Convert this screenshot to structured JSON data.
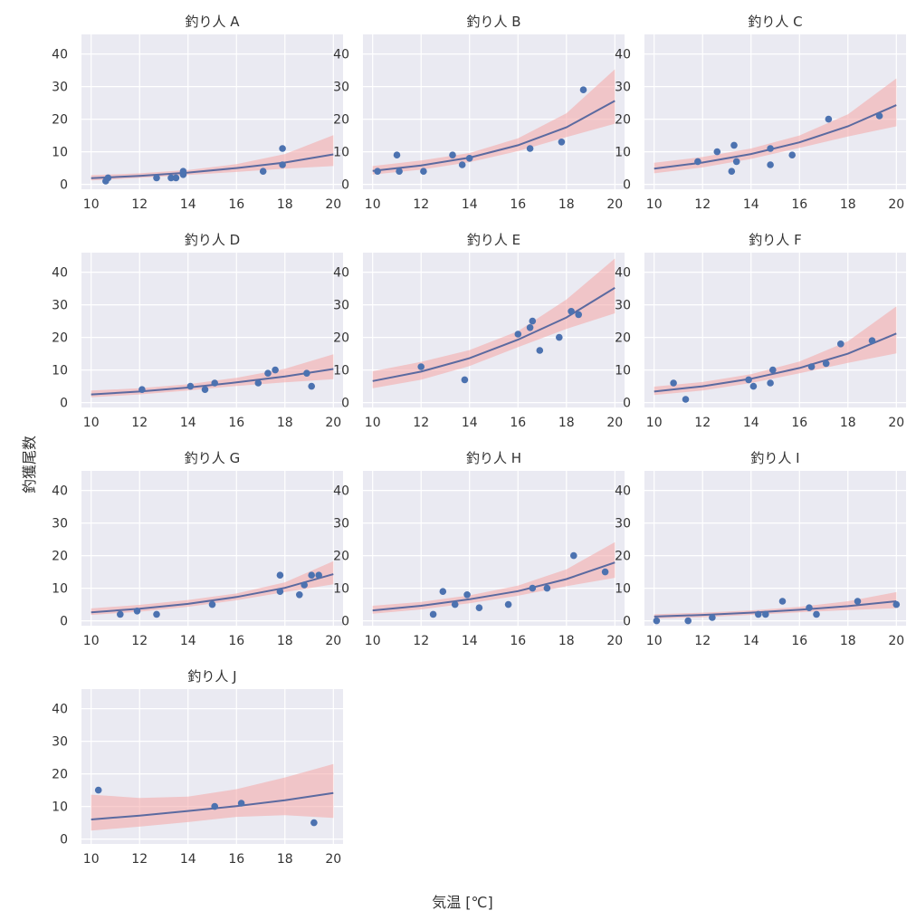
{
  "figure": {
    "xlabel": "気温 [℃]",
    "ylabel": "釣獲尾数"
  },
  "chart_data": [
    {
      "type": "scatter",
      "title": "釣り人 A",
      "xlim": [
        9.6,
        20.4
      ],
      "ylim": [
        -1.5,
        46
      ],
      "xticks": [
        10,
        12,
        14,
        16,
        18,
        20
      ],
      "yticks": [
        0,
        10,
        20,
        30,
        40
      ],
      "points": {
        "x": [
          10.6,
          10.7,
          12.7,
          13.3,
          13.5,
          13.8,
          13.8,
          17.1,
          17.9,
          17.9
        ],
        "y": [
          1,
          2,
          2,
          2,
          2,
          3,
          4,
          4,
          11,
          6
        ]
      },
      "fit": {
        "x": [
          10,
          12,
          14,
          16,
          18,
          20
        ],
        "y": [
          1.9,
          2.6,
          3.6,
          5.0,
          6.7,
          9.2
        ]
      },
      "band": {
        "x": [
          10,
          12,
          14,
          16,
          18,
          20
        ],
        "lower": [
          1.2,
          2.0,
          2.9,
          3.8,
          4.8,
          5.6
        ],
        "upper": [
          2.8,
          3.4,
          4.4,
          6.2,
          9.3,
          15.1
        ]
      }
    },
    {
      "type": "scatter",
      "title": "釣り人 B",
      "xlim": [
        9.6,
        20.4
      ],
      "ylim": [
        -1.5,
        46
      ],
      "xticks": [
        10,
        12,
        14,
        16,
        18,
        20
      ],
      "yticks": [
        0,
        10,
        20,
        30,
        40
      ],
      "points": {
        "x": [
          10.2,
          11.0,
          11.1,
          12.1,
          13.3,
          13.7,
          14.0,
          16.5,
          17.8,
          18.7
        ],
        "y": [
          4,
          9,
          4,
          4,
          9,
          6,
          8,
          11,
          13,
          29
        ]
      },
      "fit": {
        "x": [
          10,
          12,
          14,
          16,
          18,
          20
        ],
        "y": [
          4.1,
          5.8,
          8.2,
          12.0,
          17.5,
          25.6
        ]
      },
      "band": {
        "x": [
          10,
          12,
          14,
          16,
          18,
          20
        ],
        "lower": [
          3.0,
          4.5,
          6.8,
          10.2,
          14.5,
          18.6
        ],
        "upper": [
          5.6,
          7.3,
          9.6,
          14.1,
          21.8,
          35.3
        ]
      }
    },
    {
      "type": "scatter",
      "title": "釣り人 C",
      "xlim": [
        9.6,
        20.4
      ],
      "ylim": [
        -1.5,
        46
      ],
      "xticks": [
        10,
        12,
        14,
        16,
        18,
        20
      ],
      "yticks": [
        0,
        10,
        20,
        30,
        40
      ],
      "points": {
        "x": [
          11.8,
          12.6,
          13.2,
          13.3,
          13.4,
          14.8,
          14.8,
          15.7,
          17.2,
          19.3
        ],
        "y": [
          7,
          10,
          4,
          12,
          7,
          11,
          6,
          9,
          20,
          21
        ]
      },
      "fit": {
        "x": [
          10,
          12,
          14,
          16,
          18,
          20
        ],
        "y": [
          4.8,
          6.7,
          9.3,
          12.9,
          17.8,
          24.3
        ]
      },
      "band": {
        "x": [
          10,
          12,
          14,
          16,
          18,
          20
        ],
        "lower": [
          3.4,
          5.2,
          7.8,
          11.2,
          14.7,
          17.8
        ],
        "upper": [
          6.6,
          8.4,
          11.0,
          15.0,
          21.5,
          32.5
        ]
      }
    },
    {
      "type": "scatter",
      "title": "釣り人 D",
      "xlim": [
        9.6,
        20.4
      ],
      "ylim": [
        -1.5,
        46
      ],
      "xticks": [
        10,
        12,
        14,
        16,
        18,
        20
      ],
      "yticks": [
        0,
        10,
        20,
        30,
        40
      ],
      "points": {
        "x": [
          12.1,
          14.1,
          14.7,
          15.1,
          16.9,
          17.3,
          17.6,
          18.9,
          19.1
        ],
        "y": [
          4,
          5,
          4,
          6,
          6,
          9,
          10,
          9,
          5
        ]
      },
      "fit": {
        "x": [
          10,
          12,
          14,
          16,
          18,
          20
        ],
        "y": [
          2.5,
          3.4,
          4.6,
          6.2,
          8.0,
          10.3
        ]
      },
      "band": {
        "x": [
          10,
          12,
          14,
          16,
          18,
          20
        ],
        "lower": [
          1.6,
          2.5,
          3.7,
          5.1,
          6.2,
          7.2
        ],
        "upper": [
          3.7,
          4.4,
          5.6,
          7.6,
          10.4,
          14.8
        ]
      }
    },
    {
      "type": "scatter",
      "title": "釣り人 E",
      "xlim": [
        9.6,
        20.4
      ],
      "ylim": [
        -1.5,
        46
      ],
      "xticks": [
        10,
        12,
        14,
        16,
        18,
        20
      ],
      "yticks": [
        0,
        10,
        20,
        30,
        40
      ],
      "points": {
        "x": [
          12.0,
          13.8,
          16.0,
          16.5,
          16.6,
          16.9,
          17.7,
          18.2,
          18.5
        ],
        "y": [
          11,
          7,
          21,
          23,
          25,
          16,
          20,
          28,
          27
        ]
      },
      "fit": {
        "x": [
          10,
          12,
          14,
          16,
          18,
          20
        ],
        "y": [
          6.6,
          9.5,
          13.6,
          19.3,
          26.1,
          35.2
        ]
      },
      "band": {
        "x": [
          10,
          12,
          14,
          16,
          18,
          20
        ],
        "lower": [
          4.4,
          7.0,
          11.2,
          17.0,
          22.6,
          27.4
        ],
        "upper": [
          9.6,
          12.5,
          16.1,
          21.9,
          31.6,
          44.2
        ]
      }
    },
    {
      "type": "scatter",
      "title": "釣り人 F",
      "xlim": [
        9.6,
        20.4
      ],
      "ylim": [
        -1.5,
        46
      ],
      "xticks": [
        10,
        12,
        14,
        16,
        18,
        20
      ],
      "yticks": [
        0,
        10,
        20,
        30,
        40
      ],
      "points": {
        "x": [
          10.8,
          11.3,
          13.9,
          14.1,
          14.8,
          14.9,
          16.5,
          17.1,
          17.7,
          19.0
        ],
        "y": [
          6,
          1,
          7,
          5,
          6,
          10,
          11,
          12,
          18,
          19
        ]
      },
      "fit": {
        "x": [
          10,
          12,
          14,
          16,
          18,
          20
        ],
        "y": [
          3.4,
          5.0,
          7.3,
          10.6,
          15.0,
          21.2
        ]
      },
      "band": {
        "x": [
          10,
          12,
          14,
          16,
          18,
          20
        ],
        "lower": [
          2.3,
          3.7,
          6.0,
          9.0,
          12.2,
          15.1
        ],
        "upper": [
          4.9,
          6.3,
          8.7,
          12.6,
          18.8,
          29.5
        ]
      }
    },
    {
      "type": "scatter",
      "title": "釣り人 G",
      "xlim": [
        9.6,
        20.4
      ],
      "ylim": [
        -1.5,
        46
      ],
      "xticks": [
        10,
        12,
        14,
        16,
        18,
        20
      ],
      "yticks": [
        0,
        10,
        20,
        30,
        40
      ],
      "points": {
        "x": [
          11.2,
          11.9,
          12.7,
          15.0,
          17.8,
          17.8,
          18.6,
          18.8,
          19.1,
          19.4
        ],
        "y": [
          2,
          3,
          2,
          5,
          14,
          9,
          8,
          11,
          14,
          14
        ]
      },
      "fit": {
        "x": [
          10,
          12,
          14,
          16,
          18,
          20
        ],
        "y": [
          2.6,
          3.7,
          5.2,
          7.3,
          10.1,
          14.3
        ]
      },
      "band": {
        "x": [
          10,
          12,
          14,
          16,
          18,
          20
        ],
        "lower": [
          1.8,
          2.8,
          4.3,
          6.3,
          8.8,
          11.2
        ],
        "upper": [
          3.8,
          4.9,
          6.4,
          8.4,
          11.8,
          18.3
        ]
      }
    },
    {
      "type": "scatter",
      "title": "釣り人 H",
      "xlim": [
        9.6,
        20.4
      ],
      "ylim": [
        -1.5,
        46
      ],
      "xticks": [
        10,
        12,
        14,
        16,
        18,
        20
      ],
      "yticks": [
        0,
        10,
        20,
        30,
        40
      ],
      "points": {
        "x": [
          12.5,
          12.9,
          13.4,
          13.9,
          14.4,
          15.6,
          16.6,
          17.2,
          18.3,
          19.6
        ],
        "y": [
          2,
          9,
          5,
          8,
          4,
          5,
          10,
          10,
          20,
          15
        ]
      },
      "fit": {
        "x": [
          10,
          12,
          14,
          16,
          18,
          20
        ],
        "y": [
          3.2,
          4.6,
          6.6,
          9.1,
          12.8,
          17.9
        ]
      },
      "band": {
        "x": [
          10,
          12,
          14,
          16,
          18,
          20
        ],
        "lower": [
          2.2,
          3.5,
          5.4,
          7.7,
          10.6,
          13.2
        ],
        "upper": [
          4.6,
          5.8,
          7.8,
          10.8,
          15.8,
          24.1
        ]
      }
    },
    {
      "type": "scatter",
      "title": "釣り人 I",
      "xlim": [
        9.6,
        20.4
      ],
      "ylim": [
        -1.5,
        46
      ],
      "xticks": [
        10,
        12,
        14,
        16,
        18,
        20
      ],
      "yticks": [
        0,
        10,
        20,
        30,
        40
      ],
      "points": {
        "x": [
          10.1,
          11.4,
          12.4,
          14.3,
          14.6,
          15.3,
          16.4,
          16.7,
          18.4,
          20.0
        ],
        "y": [
          0,
          0,
          1,
          2,
          2,
          6,
          4,
          2,
          6,
          5
        ]
      },
      "fit": {
        "x": [
          10,
          12,
          14,
          16,
          18,
          20
        ],
        "y": [
          1.3,
          1.8,
          2.5,
          3.4,
          4.5,
          6.0
        ]
      },
      "band": {
        "x": [
          10,
          12,
          14,
          16,
          18,
          20
        ],
        "lower": [
          0.7,
          1.1,
          1.8,
          2.6,
          3.3,
          3.9
        ],
        "upper": [
          2.0,
          2.5,
          3.2,
          4.3,
          6.0,
          8.8
        ]
      }
    },
    {
      "type": "scatter",
      "title": "釣り人 J",
      "xlim": [
        9.6,
        20.4
      ],
      "ylim": [
        -1.5,
        46
      ],
      "xticks": [
        10,
        12,
        14,
        16,
        18,
        20
      ],
      "yticks": [
        0,
        10,
        20,
        30,
        40
      ],
      "points": {
        "x": [
          10.3,
          15.1,
          16.2,
          19.2
        ],
        "y": [
          15,
          10,
          11,
          5
        ]
      },
      "fit": {
        "x": [
          10,
          12,
          14,
          16,
          18,
          20
        ],
        "y": [
          6.0,
          7.2,
          8.6,
          10.1,
          11.9,
          14.1
        ]
      },
      "band": {
        "x": [
          10,
          12,
          14,
          16,
          18,
          20
        ],
        "lower": [
          2.6,
          3.8,
          5.2,
          6.8,
          7.3,
          6.5
        ],
        "upper": [
          13.6,
          12.6,
          13.0,
          15.3,
          18.9,
          23.0
        ]
      }
    }
  ]
}
